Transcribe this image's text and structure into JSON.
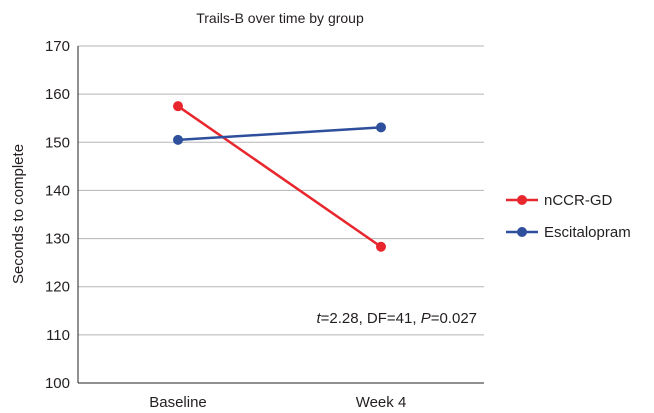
{
  "chart_data": {
    "type": "line",
    "title": "Trails-B over time by group",
    "xlabel": "",
    "ylabel": "Seconds to complete",
    "categories": [
      "Baseline",
      "Week 4"
    ],
    "ylim": [
      100,
      170
    ],
    "yticks": [
      100,
      110,
      120,
      130,
      140,
      150,
      160,
      170
    ],
    "grid": "horizontal",
    "legend_position": "right",
    "series": [
      {
        "name": "nCCR-GD",
        "color": "#e8262d",
        "values": [
          157.5,
          128.3
        ]
      },
      {
        "name": "Escitalopram",
        "color": "#2e4f9c",
        "values": [
          150.5,
          153.1
        ]
      }
    ],
    "annotation": {
      "t_label": "t",
      "t_value": "=2.28, DF=41, ",
      "p_label": "P",
      "p_value": "=0.027"
    }
  }
}
